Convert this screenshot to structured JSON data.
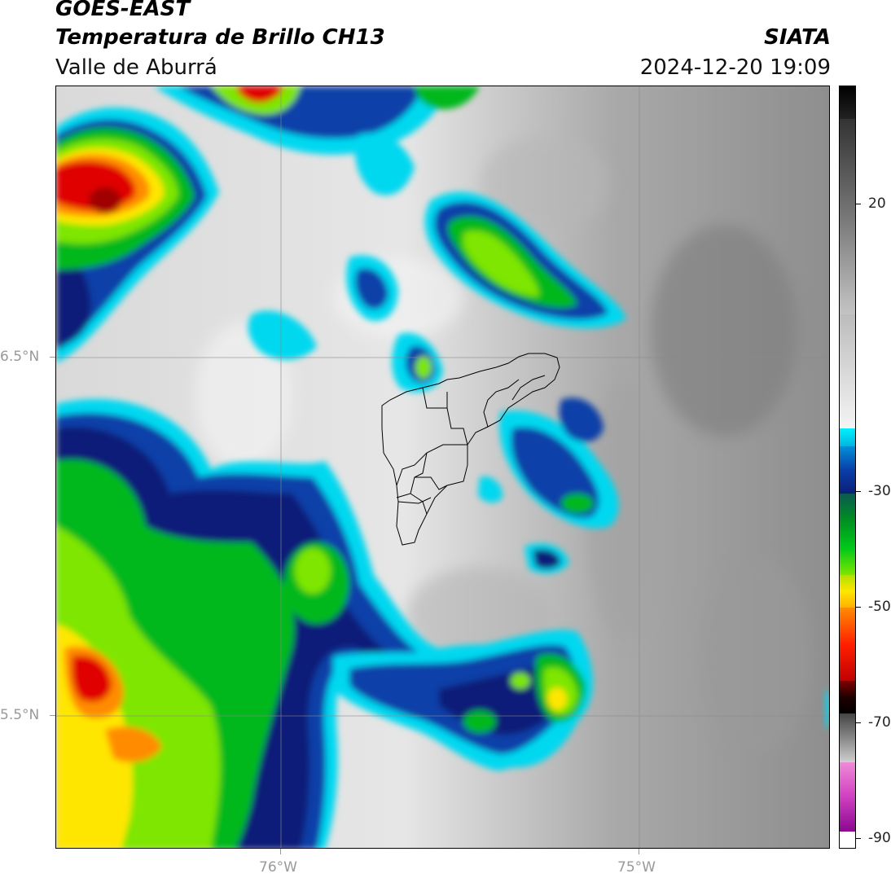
{
  "header": {
    "satellite": "GOES-EAST",
    "product": "Temperatura de Brillo CH13",
    "region": "Valle de Aburrá",
    "agency": "SIATA",
    "timestamp": "2024-12-20 19:09"
  },
  "axes": {
    "lon_labels": [
      "76°W",
      "75°W"
    ],
    "lat_labels": [
      "6.5°N",
      "5.5°N"
    ]
  },
  "colorbar": {
    "tick_labels": [
      "20",
      "-30",
      "-50",
      "-70",
      "-90"
    ],
    "range": [
      -92,
      40
    ],
    "colors": {
      "warm_gray": "#8c8c8c",
      "cold_white": "#efefef",
      "cyan": "#00d8f0",
      "blue": "#0a3fa8",
      "navy": "#0a1e78",
      "green": "#00b81a",
      "lime": "#7ee600",
      "yellow": "#ffe600",
      "orange": "#ff8c00",
      "red": "#e00000",
      "black": "#000000",
      "magenta": "#c040b0"
    }
  }
}
